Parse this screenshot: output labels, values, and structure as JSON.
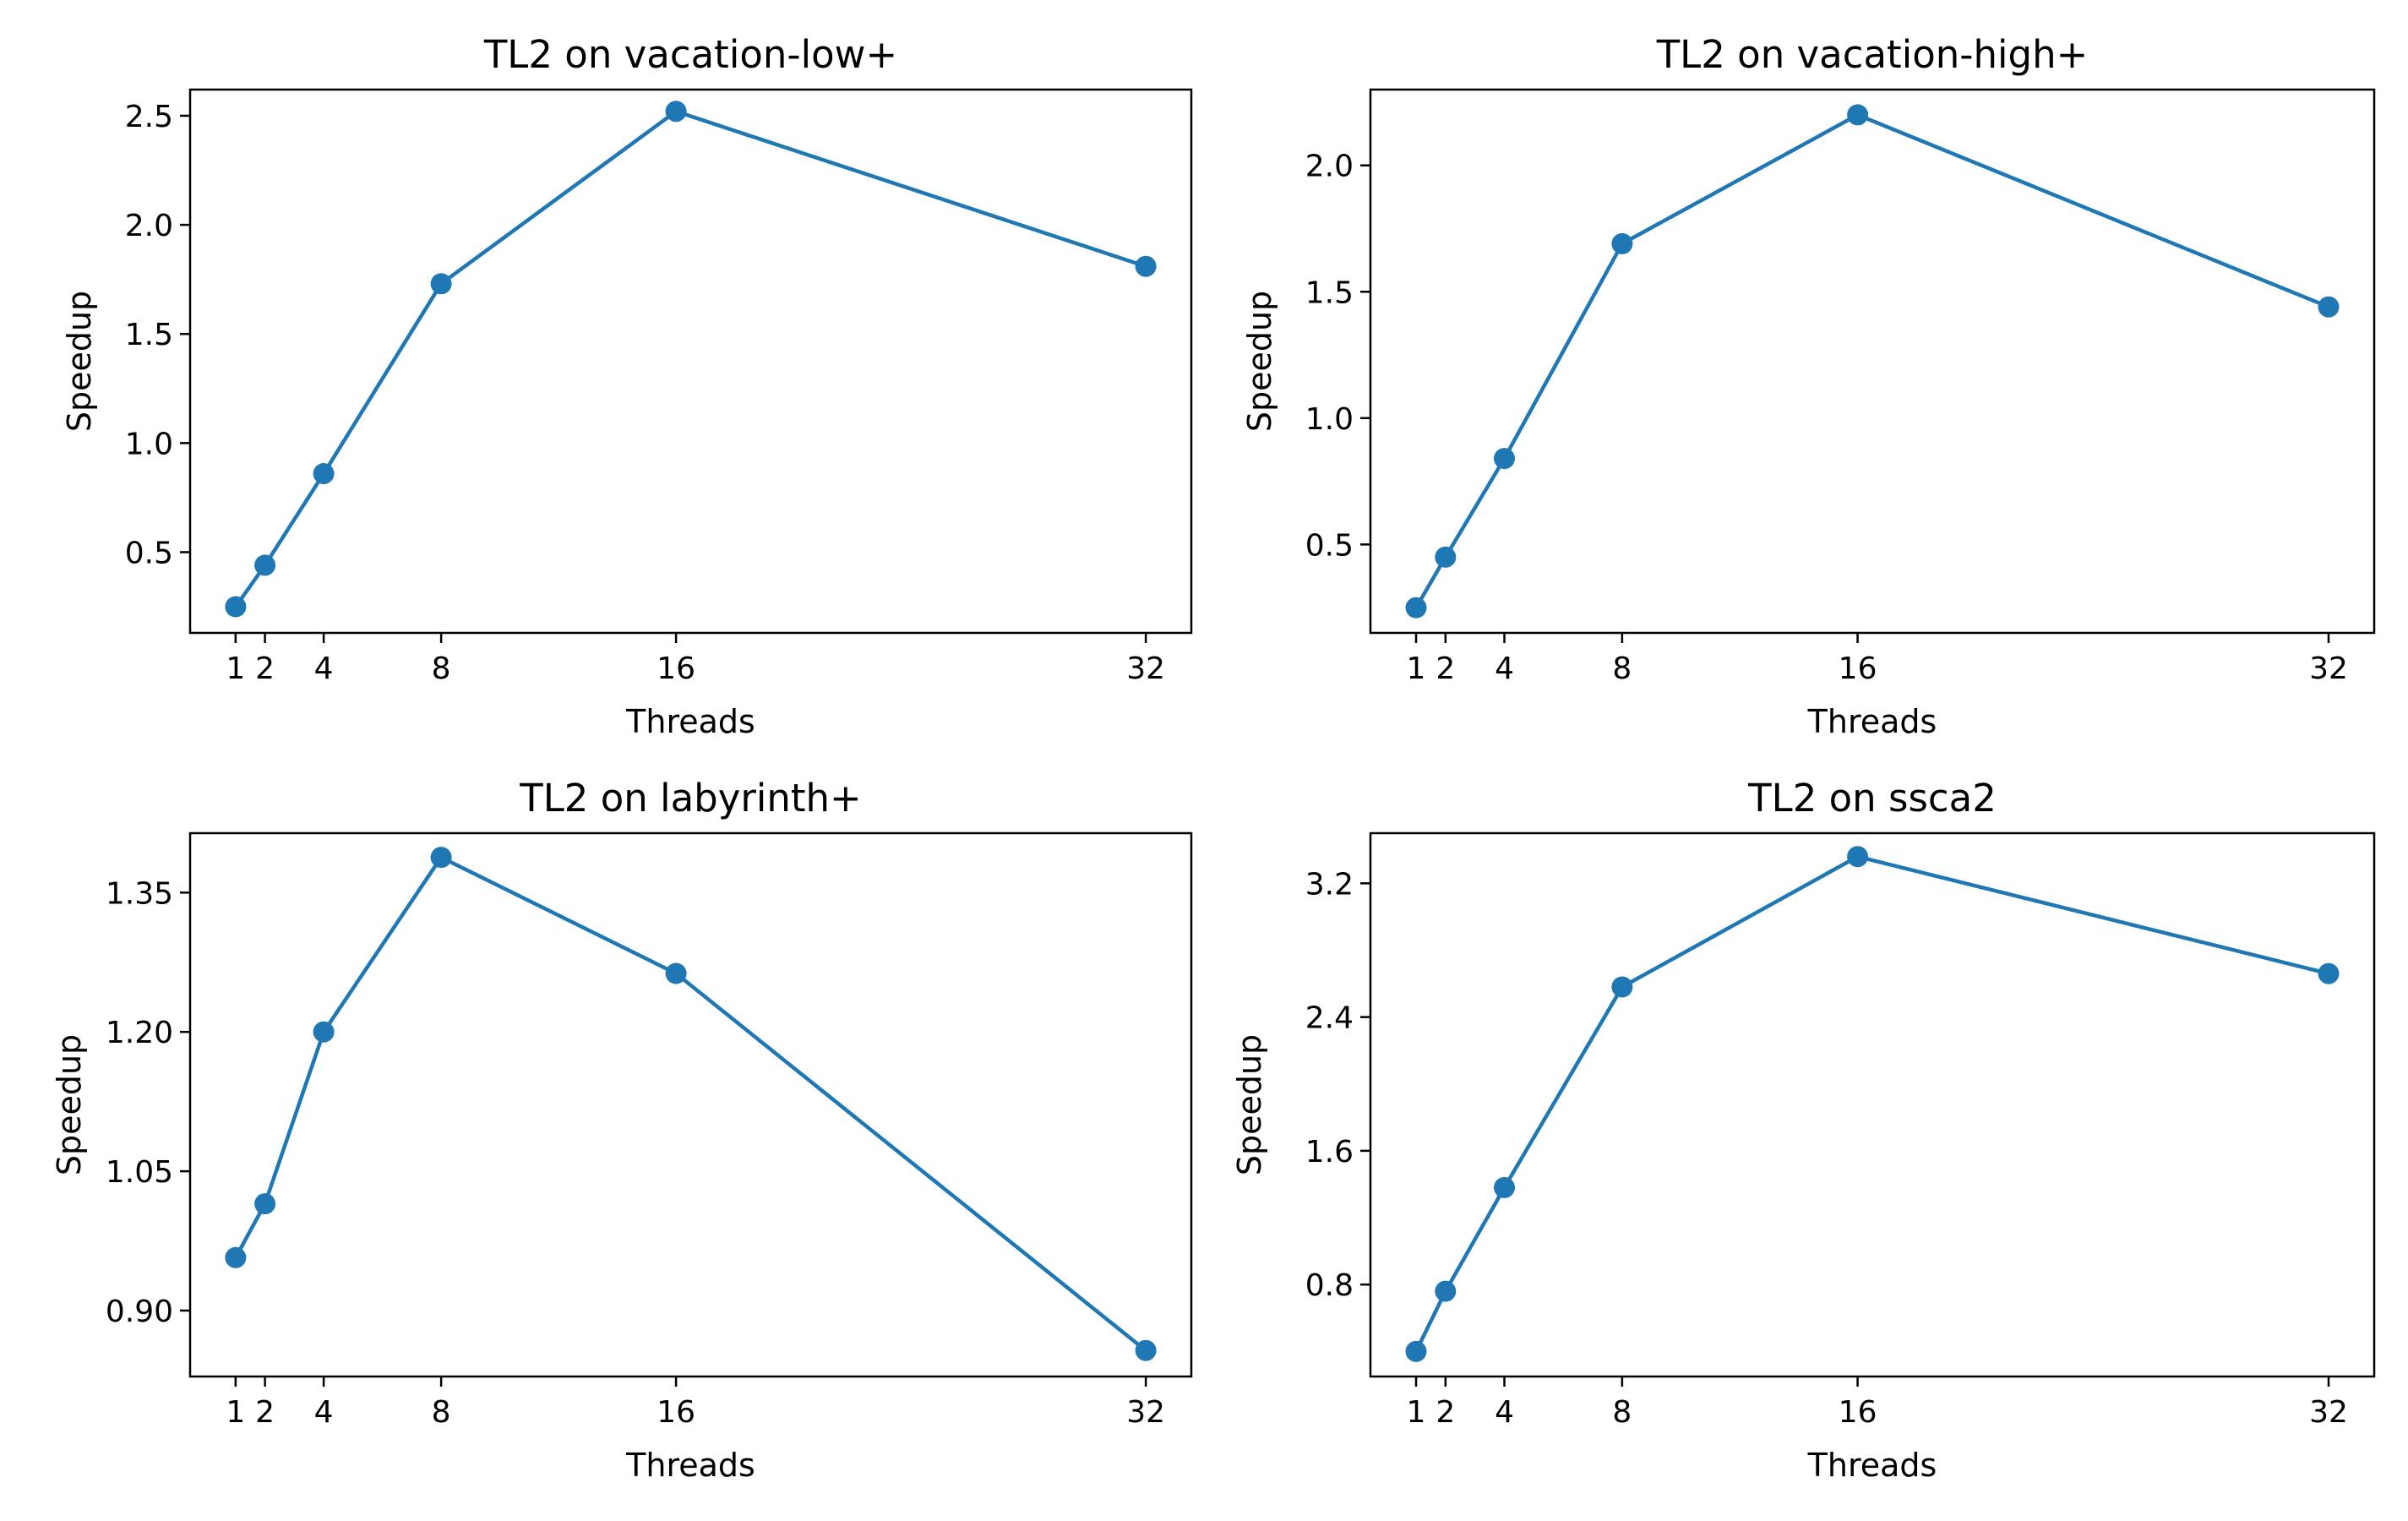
{
  "colors": {
    "series": "#1f77b4",
    "axis": "#000000",
    "background": "#ffffff"
  },
  "chart_data": [
    {
      "type": "line",
      "title": "TL2 on vacation-low+",
      "xlabel": "Threads",
      "ylabel": "Speedup",
      "x": [
        1,
        2,
        4,
        8,
        16,
        32
      ],
      "xticks": [
        "1",
        "2",
        "4",
        "8",
        "16",
        "32"
      ],
      "xlim": [
        -0.55,
        33.55
      ],
      "ylim": [
        0.13,
        2.62
      ],
      "yticks": [
        "0.5",
        "1.0",
        "1.5",
        "2.0",
        "2.5"
      ],
      "yticks_values": [
        0.5,
        1.0,
        1.5,
        2.0,
        2.5
      ],
      "series": [
        {
          "values": [
            0.25,
            0.44,
            0.86,
            1.73,
            2.52,
            1.81
          ]
        }
      ],
      "grid": false,
      "markers": "circle"
    },
    {
      "type": "line",
      "title": "TL2 on vacation-high+",
      "xlabel": "Threads",
      "ylabel": "Speedup",
      "x": [
        1,
        2,
        4,
        8,
        16,
        32
      ],
      "xticks": [
        "1",
        "2",
        "4",
        "8",
        "16",
        "32"
      ],
      "xlim": [
        -0.55,
        33.55
      ],
      "ylim": [
        0.15,
        2.3
      ],
      "yticks": [
        "0.5",
        "1.0",
        "1.5",
        "2.0"
      ],
      "yticks_values": [
        0.5,
        1.0,
        1.5,
        2.0
      ],
      "series": [
        {
          "values": [
            0.25,
            0.45,
            0.84,
            1.69,
            2.2,
            1.44
          ]
        }
      ],
      "grid": false,
      "markers": "circle"
    },
    {
      "type": "line",
      "title": "TL2 on labyrinth+",
      "xlabel": "Threads",
      "ylabel": "Speedup",
      "x": [
        1,
        2,
        4,
        8,
        16,
        32
      ],
      "xticks": [
        "1",
        "2",
        "4",
        "8",
        "16",
        "32"
      ],
      "xlim": [
        -0.55,
        33.55
      ],
      "ylim": [
        0.829,
        1.414
      ],
      "yticks": [
        "0.90",
        "1.05",
        "1.20",
        "1.35"
      ],
      "yticks_values": [
        0.9,
        1.05,
        1.2,
        1.35
      ],
      "series": [
        {
          "values": [
            0.957,
            1.015,
            1.2,
            1.388,
            1.263,
            0.857
          ]
        }
      ],
      "grid": false,
      "markers": "circle"
    },
    {
      "type": "line",
      "title": "TL2 on ssca2",
      "xlabel": "Threads",
      "ylabel": "Speedup",
      "x": [
        1,
        2,
        4,
        8,
        16,
        32
      ],
      "xticks": [
        "1",
        "2",
        "4",
        "8",
        "16",
        "32"
      ],
      "xlim": [
        -0.55,
        33.55
      ],
      "ylim": [
        0.25,
        3.5
      ],
      "yticks": [
        "0.8",
        "1.6",
        "2.4",
        "3.2"
      ],
      "yticks_values": [
        0.8,
        1.6,
        2.4,
        3.2
      ],
      "series": [
        {
          "values": [
            0.4,
            0.76,
            1.38,
            2.58,
            3.36,
            2.66
          ]
        }
      ],
      "grid": false,
      "markers": "circle"
    }
  ]
}
